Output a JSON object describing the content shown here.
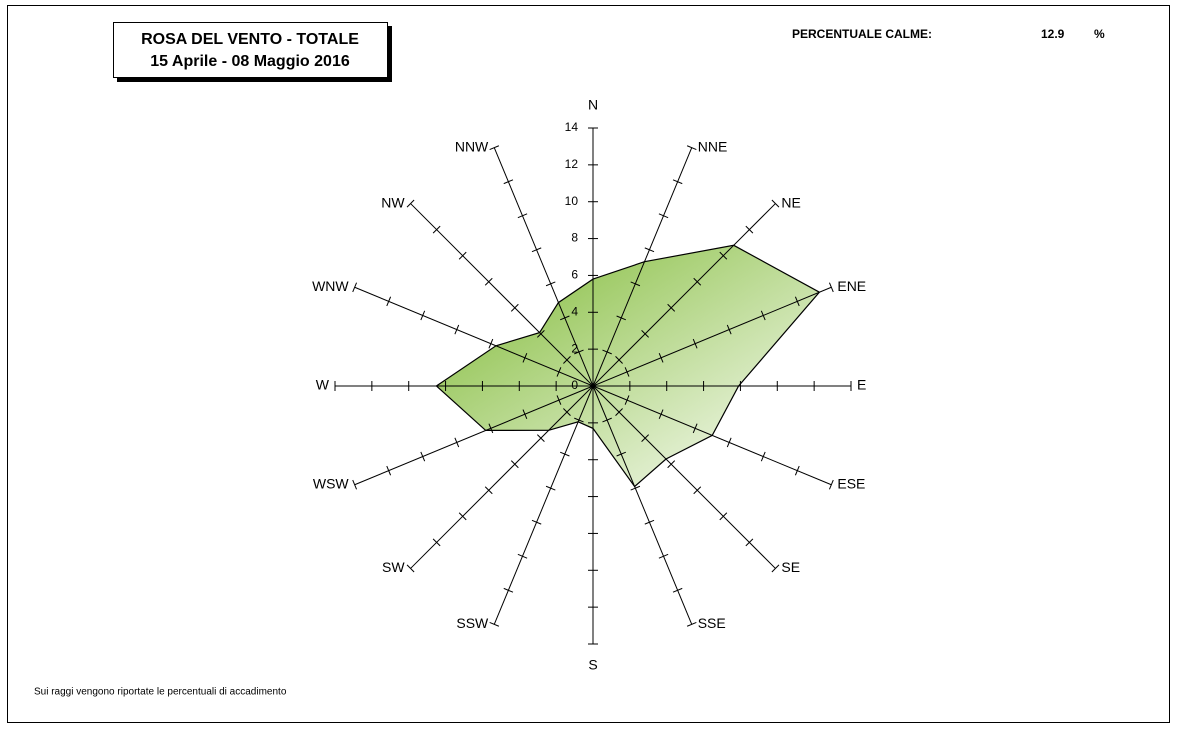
{
  "chart_data": {
    "type": "radar",
    "title": [
      "ROSA DEL VENTO - TOTALE",
      "15 Aprile - 08 Maggio 2016"
    ],
    "calm_label": "PERCENTUALE CALME:",
    "calm_value": 12.9,
    "calm_unit": "%",
    "footnote": "Sui raggi vengono riportate le percentuali di accadimento",
    "categories": [
      "N",
      "NNE",
      "NE",
      "ENE",
      "E",
      "ESE",
      "SE",
      "SSE",
      "S",
      "SSW",
      "SW",
      "WSW",
      "W",
      "WNW",
      "NW",
      "NNW"
    ],
    "values": [
      5.8,
      7.3,
      10.8,
      13.3,
      7.9,
      7.0,
      5.6,
      5.9,
      2.3,
      2.1,
      3.4,
      6.3,
      8.5,
      5.7,
      4.1,
      4.9
    ],
    "color": "#8dc63f",
    "rlim": [
      0,
      14
    ],
    "rticks": [
      0,
      2,
      4,
      6,
      8,
      10,
      12,
      14
    ]
  }
}
